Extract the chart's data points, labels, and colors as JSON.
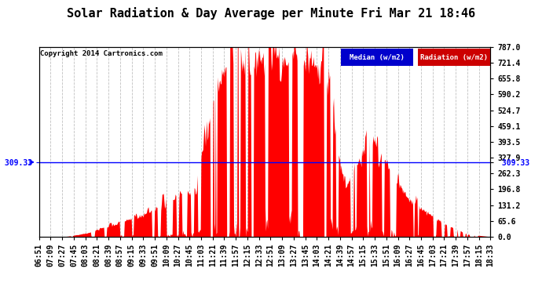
{
  "title": "Solar Radiation & Day Average per Minute Fri Mar 21 18:46",
  "copyright": "Copyright 2014 Cartronics.com",
  "legend_items": [
    {
      "label": "Median (w/m2)",
      "color": "#0000cc",
      "text_color": "#ffffff"
    },
    {
      "label": "Radiation (w/m2)",
      "color": "#cc0000",
      "text_color": "#ffffff"
    }
  ],
  "yticks_right": [
    787.0,
    721.4,
    655.8,
    590.2,
    524.7,
    459.1,
    393.5,
    327.9,
    262.3,
    196.8,
    131.2,
    65.6,
    0.0
  ],
  "ymax": 787.0,
  "ymin": 0.0,
  "median_line_y": 309.33,
  "bar_color": "#ff0000",
  "median_line_color": "#0000ff",
  "background_color": "#ffffff",
  "plot_background": "#ffffff",
  "grid_color": "#c0c0c0",
  "title_fontsize": 11,
  "tick_fontsize": 7,
  "x_tick_labels": [
    "06:51",
    "07:09",
    "07:27",
    "07:45",
    "08:03",
    "08:21",
    "08:39",
    "08:57",
    "09:15",
    "09:33",
    "09:51",
    "10:09",
    "10:27",
    "10:45",
    "11:03",
    "11:21",
    "11:39",
    "11:57",
    "12:15",
    "12:33",
    "12:51",
    "13:09",
    "13:27",
    "13:45",
    "14:03",
    "14:21",
    "14:39",
    "14:57",
    "15:15",
    "15:33",
    "15:51",
    "16:09",
    "16:27",
    "16:45",
    "17:03",
    "17:21",
    "17:39",
    "17:57",
    "18:15",
    "18:33"
  ],
  "num_points": 720
}
